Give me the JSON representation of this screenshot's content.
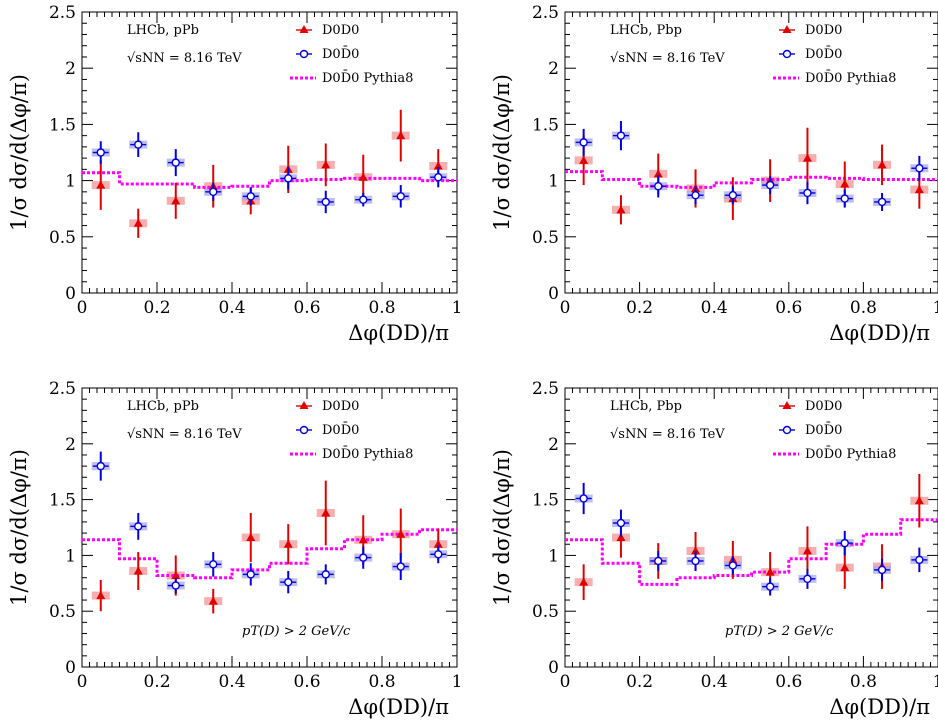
{
  "chart_data": [
    {
      "type": "scatter",
      "xlabel": "Δφ(DD)/π",
      "ylabel": "1/σ dσ/d(Δφ/π)",
      "xlim": [
        0,
        1
      ],
      "ylim": [
        0,
        2.5
      ],
      "x_ticks": [
        "0",
        "0.2",
        "0.4",
        "0.6",
        "0.8",
        "1"
      ],
      "y_ticks": [
        "0",
        "0.5",
        "1",
        "1.5",
        "2",
        "2.5"
      ],
      "info": [
        "LHCb, pPb",
        "√sNN = 8.16 TeV"
      ],
      "cut_label": "",
      "legend": [
        "D0D0",
        "D0D̄0",
        "D0D̄0 Pythia8"
      ],
      "x": [
        0.05,
        0.15,
        0.25,
        0.35,
        0.45,
        0.55,
        0.65,
        0.75,
        0.85,
        0.95
      ],
      "series": [
        {
          "name": "D0D0",
          "color": "#e00000",
          "values": [
            0.96,
            0.62,
            0.82,
            0.95,
            0.82,
            1.1,
            1.14,
            1.03,
            1.4,
            1.13
          ],
          "errors": [
            0.22,
            0.13,
            0.16,
            0.19,
            0.12,
            0.21,
            0.19,
            0.2,
            0.23,
            0.15
          ]
        },
        {
          "name": "D0D̄0",
          "color": "#0000e0",
          "values": [
            1.25,
            1.32,
            1.16,
            0.9,
            0.86,
            1.02,
            0.81,
            0.83,
            0.86,
            1.03
          ],
          "errors": [
            0.1,
            0.11,
            0.12,
            0.08,
            0.08,
            0.1,
            0.1,
            0.06,
            0.1,
            0.09
          ]
        },
        {
          "name": "D0D̄0 Pythia8",
          "color": "#ff00ff",
          "values": [
            1.07,
            0.97,
            0.97,
            0.94,
            0.95,
            1.0,
            1.01,
            1.02,
            1.02,
            1.0
          ]
        }
      ]
    },
    {
      "type": "scatter",
      "xlabel": "Δφ(DD)/π",
      "ylabel": "1/σ dσ/d(Δφ/π)",
      "xlim": [
        0,
        1
      ],
      "ylim": [
        0,
        2.5
      ],
      "x_ticks": [
        "0",
        "0.2",
        "0.4",
        "0.6",
        "0.8",
        "1"
      ],
      "y_ticks": [
        "0",
        "0.5",
        "1",
        "1.5",
        "2",
        "2.5"
      ],
      "info": [
        "LHCb, Pbp",
        "√sNN = 8.16 TeV"
      ],
      "cut_label": "",
      "legend": [
        "D0D0",
        "D0D̄0",
        "D0D̄0 Pythia8"
      ],
      "x": [
        0.05,
        0.15,
        0.25,
        0.35,
        0.45,
        0.55,
        0.65,
        0.75,
        0.85,
        0.95
      ],
      "series": [
        {
          "name": "D0D0",
          "color": "#e00000",
          "values": [
            1.18,
            0.74,
            1.06,
            0.93,
            0.84,
            1.0,
            1.2,
            0.97,
            1.14,
            0.92
          ],
          "errors": [
            0.22,
            0.13,
            0.18,
            0.17,
            0.19,
            0.19,
            0.27,
            0.2,
            0.18,
            0.17
          ]
        },
        {
          "name": "D0D̄0",
          "color": "#0000e0",
          "values": [
            1.34,
            1.4,
            0.95,
            0.87,
            0.87,
            0.96,
            0.89,
            0.84,
            0.81,
            1.11
          ],
          "errors": [
            0.12,
            0.13,
            0.1,
            0.08,
            0.08,
            0.08,
            0.1,
            0.08,
            0.08,
            0.11
          ]
        },
        {
          "name": "D0D̄0 Pythia8",
          "color": "#ff00ff",
          "values": [
            1.08,
            1.01,
            0.95,
            0.94,
            0.98,
            1.01,
            1.03,
            1.02,
            1.01,
            1.01
          ]
        }
      ]
    },
    {
      "type": "scatter",
      "xlabel": "Δφ(DD)/π",
      "ylabel": "1/σ dσ/d(Δφ/π)",
      "xlim": [
        0,
        1
      ],
      "ylim": [
        0,
        2.5
      ],
      "x_ticks": [
        "0",
        "0.2",
        "0.4",
        "0.6",
        "0.8",
        "1"
      ],
      "y_ticks": [
        "0",
        "0.5",
        "1",
        "1.5",
        "2",
        "2.5"
      ],
      "info": [
        "LHCb, pPb",
        "√sNN = 8.16 TeV"
      ],
      "cut_label": "pT(D) > 2 GeV/c",
      "legend": [
        "D0D0",
        "D0D̄0",
        "D0D̄0 Pythia8"
      ],
      "x": [
        0.05,
        0.15,
        0.25,
        0.35,
        0.45,
        0.55,
        0.65,
        0.75,
        0.85,
        0.95
      ],
      "series": [
        {
          "name": "D0D0",
          "color": "#e00000",
          "values": [
            0.64,
            0.86,
            0.82,
            0.59,
            1.16,
            1.1,
            1.38,
            1.14,
            1.19,
            1.1
          ],
          "errors": [
            0.14,
            0.17,
            0.18,
            0.11,
            0.22,
            0.18,
            0.29,
            0.22,
            0.23,
            0.14
          ]
        },
        {
          "name": "D0D̄0",
          "color": "#0000e0",
          "values": [
            1.8,
            1.26,
            0.73,
            0.92,
            0.83,
            0.76,
            0.83,
            0.98,
            0.9,
            1.01
          ],
          "errors": [
            0.13,
            0.12,
            0.07,
            0.11,
            0.1,
            0.1,
            0.09,
            0.1,
            0.12,
            0.08
          ]
        },
        {
          "name": "D0D̄0 Pythia8",
          "color": "#ff00ff",
          "values": [
            1.14,
            0.97,
            0.82,
            0.8,
            0.87,
            0.93,
            1.06,
            1.14,
            1.19,
            1.23
          ]
        }
      ]
    },
    {
      "type": "scatter",
      "xlabel": "Δφ(DD)/π",
      "ylabel": "1/σ dσ/d(Δφ/π)",
      "xlim": [
        0,
        1
      ],
      "ylim": [
        0,
        2.5
      ],
      "x_ticks": [
        "0",
        "0.2",
        "0.4",
        "0.6",
        "0.8",
        "1"
      ],
      "y_ticks": [
        "0",
        "0.5",
        "1",
        "1.5",
        "2",
        "2.5"
      ],
      "info": [
        "LHCb, Pbp",
        "√sNN = 8.16 TeV"
      ],
      "cut_label": "pT(D) > 2 GeV/c",
      "legend": [
        "D0D0",
        "D0D̄0",
        "D0D̄0 Pythia8"
      ],
      "x": [
        0.05,
        0.15,
        0.25,
        0.35,
        0.45,
        0.55,
        0.65,
        0.75,
        0.85,
        0.95
      ],
      "series": [
        {
          "name": "D0D0",
          "color": "#e00000",
          "values": [
            0.76,
            1.16,
            0.95,
            1.04,
            0.96,
            0.85,
            1.04,
            0.89,
            0.9,
            1.49
          ],
          "errors": [
            0.16,
            0.18,
            0.16,
            0.17,
            0.17,
            0.18,
            0.22,
            0.19,
            0.2,
            0.24
          ]
        },
        {
          "name": "D0D̄0",
          "color": "#0000e0",
          "values": [
            1.51,
            1.29,
            0.95,
            0.95,
            0.91,
            0.72,
            0.79,
            1.11,
            0.87,
            0.96
          ],
          "errors": [
            0.14,
            0.12,
            0.09,
            0.09,
            0.08,
            0.08,
            0.09,
            0.11,
            0.1,
            0.11
          ]
        },
        {
          "name": "D0D̄0 Pythia8",
          "color": "#ff00ff",
          "values": [
            1.14,
            0.93,
            0.74,
            0.8,
            0.82,
            0.85,
            0.97,
            1.1,
            1.19,
            1.32
          ]
        }
      ]
    }
  ]
}
